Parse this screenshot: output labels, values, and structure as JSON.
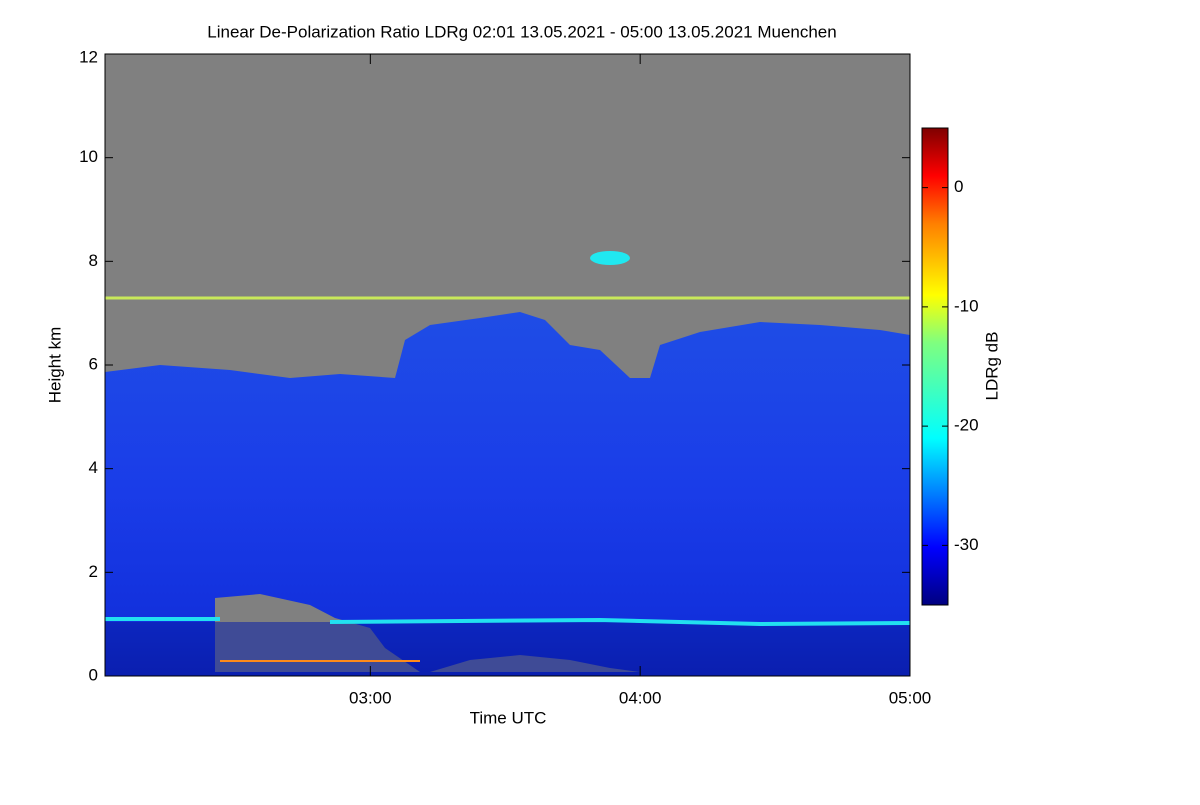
{
  "chart_data": {
    "type": "heatmap",
    "title": "Linear De-Polarization Ratio LDRg   02:01 13.05.2021 - 05:00 13.05.2021 Muenchen",
    "xlabel": "Time UTC",
    "ylabel": "Height km",
    "colorbar_label": "LDRg dB",
    "xlim": [
      121,
      300
    ],
    "xticks": [
      {
        "value": 180,
        "label": "03:00"
      },
      {
        "value": 240,
        "label": "04:00"
      },
      {
        "value": 300,
        "label": "05:00"
      }
    ],
    "ylim": [
      0,
      12
    ],
    "yticks": [
      0,
      2,
      4,
      6,
      8,
      10,
      12
    ],
    "zlim": [
      -35,
      5
    ],
    "zticks": [
      0,
      -10,
      -20,
      -30
    ],
    "colormap": "jet"
  }
}
